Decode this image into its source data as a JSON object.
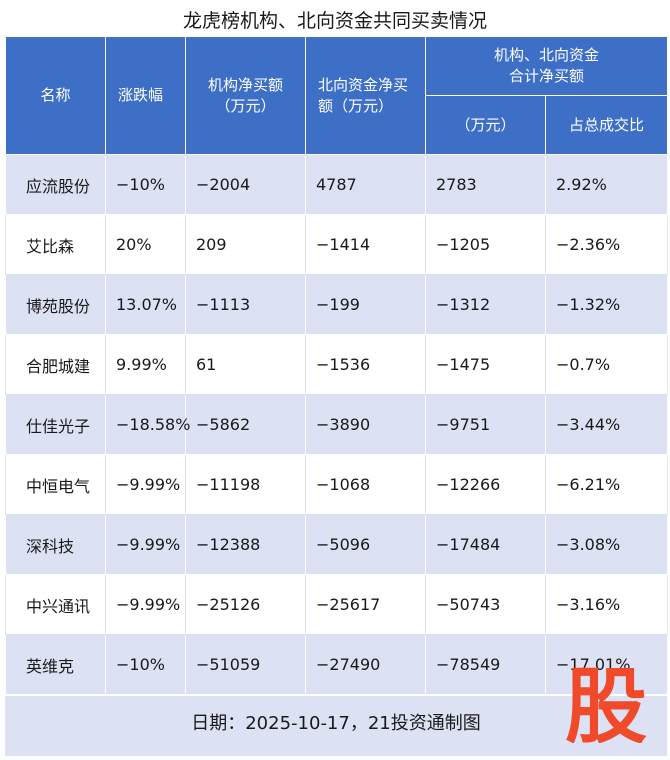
{
  "title": "龙虎榜机构、北向资金共同买卖情况",
  "headers": {
    "name": "名称",
    "change": "涨跌幅",
    "inst_net": "机构净买额\n（万元）",
    "north_net": "北向资金净买\n额（万元）",
    "combined_group": "机构、北向资金\n合计净买额",
    "combined_amount": "（万元）",
    "share": "占总成交比"
  },
  "rows": [
    {
      "name": "应流股份",
      "change": "-10%",
      "inst_net": "-2004",
      "north_net": "4787",
      "combined": "2783",
      "share": "2.92%"
    },
    {
      "name": "艾比森",
      "change": "20%",
      "inst_net": "209",
      "north_net": "-1414",
      "combined": "-1205",
      "share": "-2.36%"
    },
    {
      "name": "博苑股份",
      "change": "13.07%",
      "inst_net": "-1113",
      "north_net": "-199",
      "combined": "-1312",
      "share": "-1.32%"
    },
    {
      "name": "合肥城建",
      "change": "9.99%",
      "inst_net": "61",
      "north_net": "-1536",
      "combined": "-1475",
      "share": "-0.7%"
    },
    {
      "name": "仕佳光子",
      "change": "-18.58%",
      "inst_net": "-5862",
      "north_net": "-3890",
      "combined": "-9751",
      "share": "-3.44%"
    },
    {
      "name": "中恒电气",
      "change": "-9.99%",
      "inst_net": "-11198",
      "north_net": "-1068",
      "combined": "-12266",
      "share": "-6.21%"
    },
    {
      "name": "深科技",
      "change": "-9.99%",
      "inst_net": "-12388",
      "north_net": "-5096",
      "combined": "-17484",
      "share": "-3.08%"
    },
    {
      "name": "中兴通讯",
      "change": "-9.99%",
      "inst_net": "-25126",
      "north_net": "-25617",
      "combined": "-50743",
      "share": "-3.16%"
    },
    {
      "name": "英维克",
      "change": "-10%",
      "inst_net": "-51059",
      "north_net": "-27490",
      "combined": "-78549",
      "share": "-17.01%"
    }
  ],
  "footer": "日期：2025-10-17，21投资通制图",
  "logo_text": "股",
  "colors": {
    "header": "#3e6fc7",
    "band": "#dce1f4",
    "logo": "#f04a2a"
  }
}
